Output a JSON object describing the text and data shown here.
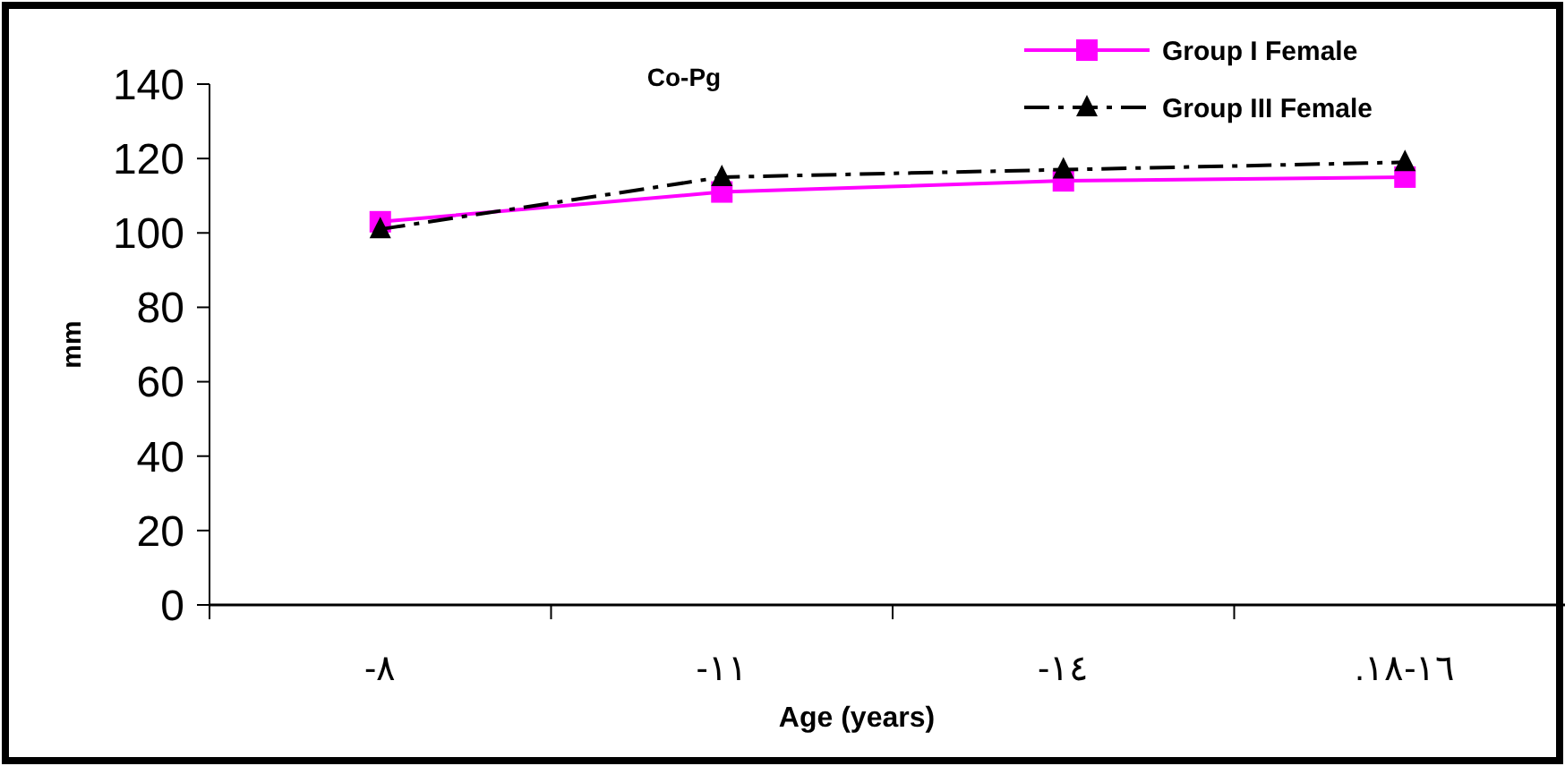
{
  "chart_data": {
    "type": "line",
    "title": "Co-Pg",
    "xlabel": "Age (years)",
    "ylabel": "mm",
    "categories": [
      "-٨",
      "-١١",
      "-١٤",
      ".١٨-١٦"
    ],
    "series": [
      {
        "name": "Group I Female",
        "color": "#ff00ff",
        "values": [
          103,
          111,
          114,
          115
        ],
        "marker": "square",
        "line_style": "solid"
      },
      {
        "name": "Group III Female",
        "color": "#000000",
        "values": [
          101,
          115,
          117,
          119
        ],
        "marker": "triangle",
        "line_style": "dashed"
      }
    ],
    "ylim": [
      0,
      140
    ],
    "yticks": [
      0,
      20,
      40,
      60,
      80,
      100,
      120,
      140
    ],
    "grid": false,
    "legend": "top right"
  }
}
